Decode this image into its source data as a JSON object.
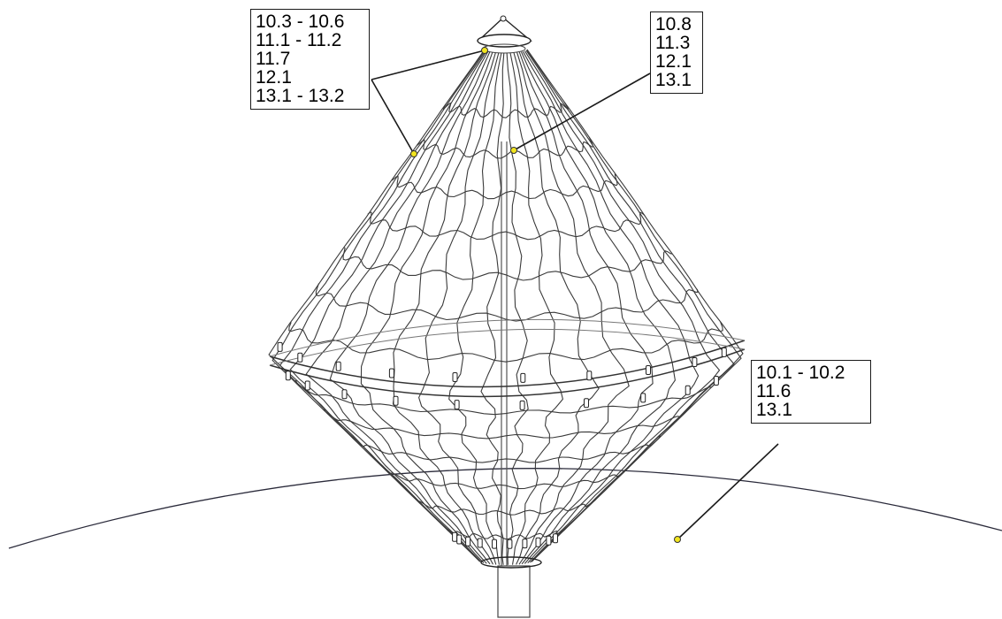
{
  "callouts": {
    "top_left": [
      "10.3 - 10.6",
      "11.1 - 11.2",
      "11.7",
      "12.1",
      "13.1 - 13.2"
    ],
    "top_right": [
      "10.8",
      "11.3",
      "12.1",
      "13.1"
    ],
    "bottom_right": [
      "10.1 - 10.2",
      "11.6",
      "13.1"
    ]
  },
  "colors": {
    "marker": "#f2e51f",
    "line": "#1a1a1a",
    "structure": "#3a3a3a"
  }
}
